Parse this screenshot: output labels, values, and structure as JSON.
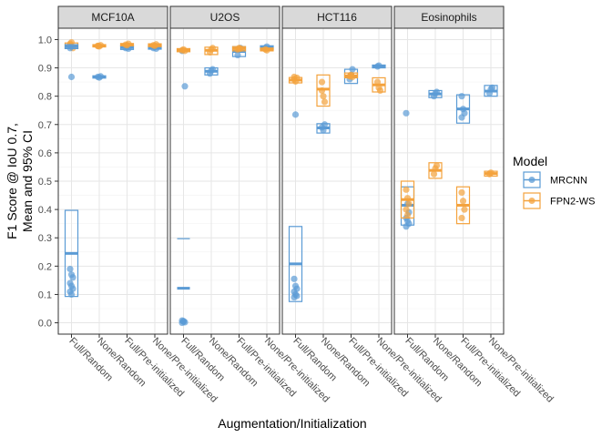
{
  "chart_data": {
    "type": "scatter",
    "title": "",
    "ylabel_lines": [
      "F1 Score @ IoU 0.7,",
      "Mean and 95% CI"
    ],
    "xlabel": "Augmentation/Initialization",
    "ylim": [
      0,
      1
    ],
    "yticks": [
      "0.0",
      "0.1",
      "0.2",
      "0.3",
      "0.4",
      "0.5",
      "0.6",
      "0.7",
      "0.8",
      "0.9",
      "1.0"
    ],
    "categories": [
      "Full/Random",
      "None/Random",
      "Full/Pre-initialized",
      "None/Pre-initialized"
    ],
    "legend": {
      "title": "Model",
      "placement": "right",
      "items": [
        {
          "label": "MRCNN",
          "color": "#5b9bd5"
        },
        {
          "label": "FPN2-WS",
          "color": "#f4a23c"
        }
      ]
    },
    "grid": true,
    "panels": [
      {
        "name": "MCF10A",
        "groups": [
          {
            "series": "MRCNN",
            "cat": 0,
            "mean": 0.245,
            "lo": 0.093,
            "hi": 0.397,
            "points": [
              0.19,
              0.17,
              0.16,
              0.14,
              0.13,
              0.12,
              0.11,
              0.1
            ]
          },
          {
            "series": "FPN2-WS",
            "cat": 0,
            "mean": 0.978,
            "lo": 0.968,
            "hi": 0.988,
            "points": [
              0.985,
              0.975,
              0.97,
              0.98,
              0.99
            ]
          },
          {
            "series": "MRCNN",
            "cat": 0,
            "mean": 0.975,
            "lo": 0.968,
            "hi": 0.982,
            "points": [
              0.97,
              0.868
            ]
          },
          {
            "series": "MRCNN",
            "cat": 1,
            "mean": 0.868,
            "lo": 0.864,
            "hi": 0.872,
            "points": [
              0.868,
              0.866,
              0.87
            ]
          },
          {
            "series": "FPN2-WS",
            "cat": 1,
            "mean": 0.978,
            "lo": 0.974,
            "hi": 0.982,
            "points": [
              0.978,
              0.976,
              0.98,
              0.977
            ]
          },
          {
            "series": "MRCNN",
            "cat": 2,
            "mean": 0.972,
            "lo": 0.965,
            "hi": 0.978,
            "points": [
              0.97,
              0.975,
              0.968
            ]
          },
          {
            "series": "FPN2-WS",
            "cat": 2,
            "mean": 0.982,
            "lo": 0.978,
            "hi": 0.986,
            "points": [
              0.982,
              0.98,
              0.985
            ]
          },
          {
            "series": "MRCNN",
            "cat": 3,
            "mean": 0.972,
            "lo": 0.966,
            "hi": 0.978,
            "points": [
              0.97,
              0.975,
              0.968
            ]
          },
          {
            "series": "FPN2-WS",
            "cat": 3,
            "mean": 0.98,
            "lo": 0.975,
            "hi": 0.985,
            "points": [
              0.98,
              0.978,
              0.983
            ]
          }
        ]
      },
      {
        "name": "U2OS",
        "groups": [
          {
            "series": "MRCNN",
            "cat": 0,
            "mean": 0.122,
            "lo": -0.05,
            "hi": 0.297,
            "points": [
              0.008,
              0.004,
              0.002,
              0.0,
              0.006,
              0.835,
              0.96
            ]
          },
          {
            "series": "FPN2-WS",
            "cat": 0,
            "mean": 0.963,
            "lo": 0.957,
            "hi": 0.968,
            "points": [
              0.962,
              0.965,
              0.96
            ]
          },
          {
            "series": "MRCNN",
            "cat": 1,
            "mean": 0.888,
            "lo": 0.875,
            "hi": 0.9,
            "points": [
              0.88,
              0.89,
              0.895
            ]
          },
          {
            "series": "FPN2-WS",
            "cat": 1,
            "mean": 0.962,
            "lo": 0.947,
            "hi": 0.973,
            "points": [
              0.955,
              0.965,
              0.97
            ]
          },
          {
            "series": "MRCNN",
            "cat": 2,
            "mean": 0.958,
            "lo": 0.94,
            "hi": 0.975,
            "points": [
              0.945,
              0.965,
              0.97
            ]
          },
          {
            "series": "FPN2-WS",
            "cat": 2,
            "mean": 0.968,
            "lo": 0.96,
            "hi": 0.975,
            "points": [
              0.965,
              0.97,
              0.968
            ]
          },
          {
            "series": "MRCNN",
            "cat": 3,
            "mean": 0.972,
            "lo": 0.965,
            "hi": 0.978,
            "points": [
              0.97,
              0.975
            ]
          },
          {
            "series": "FPN2-WS",
            "cat": 3,
            "mean": 0.965,
            "lo": 0.96,
            "hi": 0.97,
            "points": [
              0.965,
              0.962
            ]
          }
        ]
      },
      {
        "name": "HCT116",
        "groups": [
          {
            "series": "MRCNN",
            "cat": 0,
            "mean": 0.208,
            "lo": 0.075,
            "hi": 0.34,
            "points": [
              0.155,
              0.13,
              0.12,
              0.11,
              0.1,
              0.095,
              0.09,
              0.735
            ]
          },
          {
            "series": "FPN2-WS",
            "cat": 0,
            "mean": 0.857,
            "lo": 0.847,
            "hi": 0.866,
            "points": [
              0.86,
              0.852,
              0.865,
              0.868
            ]
          },
          {
            "series": "MRCNN",
            "cat": 1,
            "mean": 0.688,
            "lo": 0.67,
            "hi": 0.703,
            "points": [
              0.69,
              0.68,
              0.7
            ]
          },
          {
            "series": "FPN2-WS",
            "cat": 1,
            "mean": 0.825,
            "lo": 0.765,
            "hi": 0.875,
            "points": [
              0.85,
              0.8,
              0.78,
              0.82
            ]
          },
          {
            "series": "MRCNN",
            "cat": 2,
            "mean": 0.868,
            "lo": 0.845,
            "hi": 0.895,
            "points": [
              0.86,
              0.875,
              0.895
            ]
          },
          {
            "series": "FPN2-WS",
            "cat": 2,
            "mean": 0.872,
            "lo": 0.865,
            "hi": 0.882,
            "points": [
              0.87,
              0.875,
              0.868
            ]
          },
          {
            "series": "MRCNN",
            "cat": 3,
            "mean": 0.905,
            "lo": 0.9,
            "hi": 0.91,
            "points": [
              0.905,
              0.908
            ]
          },
          {
            "series": "FPN2-WS",
            "cat": 3,
            "mean": 0.84,
            "lo": 0.815,
            "hi": 0.865,
            "points": [
              0.85,
              0.83,
              0.82
            ]
          }
        ]
      },
      {
        "name": "Eosinophils",
        "groups": [
          {
            "series": "MRCNN",
            "cat": 0,
            "mean": 0.415,
            "lo": 0.345,
            "hi": 0.48,
            "points": [
              0.74,
              0.42,
              0.39,
              0.37,
              0.36,
              0.35,
              0.34
            ]
          },
          {
            "series": "FPN2-WS",
            "cat": 0,
            "mean": 0.435,
            "lo": 0.37,
            "hi": 0.5,
            "points": [
              0.47,
              0.44,
              0.42,
              0.4,
              0.38
            ]
          },
          {
            "series": "MRCNN",
            "cat": 1,
            "mean": 0.808,
            "lo": 0.795,
            "hi": 0.82,
            "points": [
              0.8,
              0.81,
              0.815
            ]
          },
          {
            "series": "FPN2-WS",
            "cat": 1,
            "mean": 0.538,
            "lo": 0.51,
            "hi": 0.565,
            "points": [
              0.525,
              0.545,
              0.555
            ]
          },
          {
            "series": "MRCNN",
            "cat": 2,
            "mean": 0.755,
            "lo": 0.705,
            "hi": 0.805,
            "points": [
              0.8,
              0.755,
              0.74,
              0.725
            ]
          },
          {
            "series": "FPN2-WS",
            "cat": 2,
            "mean": 0.415,
            "lo": 0.35,
            "hi": 0.48,
            "points": [
              0.46,
              0.43,
              0.4,
              0.37
            ]
          },
          {
            "series": "MRCNN",
            "cat": 3,
            "mean": 0.818,
            "lo": 0.8,
            "hi": 0.838,
            "points": [
              0.81,
              0.825,
              0.83
            ]
          },
          {
            "series": "FPN2-WS",
            "cat": 3,
            "mean": 0.527,
            "lo": 0.518,
            "hi": 0.535,
            "points": [
              0.525,
              0.53
            ]
          }
        ]
      }
    ]
  }
}
